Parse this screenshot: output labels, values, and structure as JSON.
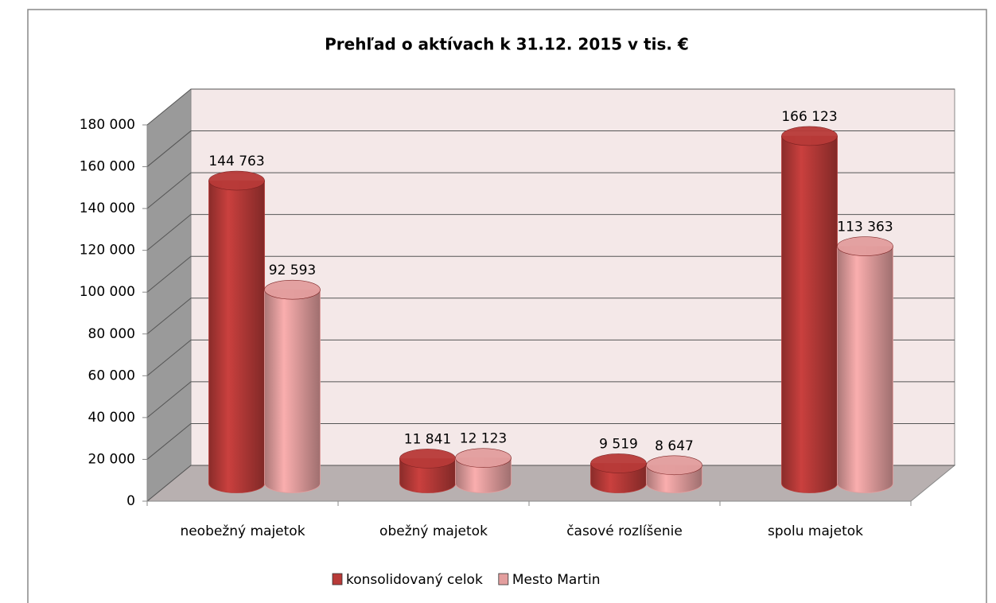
{
  "chart_data": {
    "type": "bar3d",
    "title": "Prehľad o aktívach k 31.12. 2015 v tis. €",
    "categories": [
      "neobežný majetok",
      "obežný majetok",
      "časové rozlíšenie",
      "spolu majetok"
    ],
    "series": [
      {
        "name": "konsolidovaný celok",
        "color": "#b83a38",
        "values": [
          144763,
          11841,
          9519,
          166123
        ],
        "value_labels": [
          "144 763",
          "11 841",
          "9 519",
          "166 123"
        ]
      },
      {
        "name": "Mesto Martin",
        "color": "#e39e9e",
        "values": [
          92593,
          12123,
          8647,
          113363
        ],
        "value_labels": [
          "92 593",
          "12 123",
          "8 647",
          "113 363"
        ]
      }
    ],
    "ylim": [
      0,
      180000
    ],
    "yticks": [
      0,
      {
        "value": 20000,
        "label": "20 000"
      },
      {
        "value": 40000,
        "label": "40 000"
      },
      {
        "value": 60000,
        "label": "60 000"
      },
      {
        "value": 80000,
        "label": "80 000"
      },
      {
        "value": 100000,
        "label": "100 000"
      },
      {
        "value": 120000,
        "label": "120 000"
      },
      {
        "value": 140000,
        "label": "140 000"
      },
      {
        "value": 160000,
        "label": "160 000"
      },
      {
        "value": 180000,
        "label": "180 000"
      }
    ],
    "grid": true,
    "legend": "bottom"
  }
}
